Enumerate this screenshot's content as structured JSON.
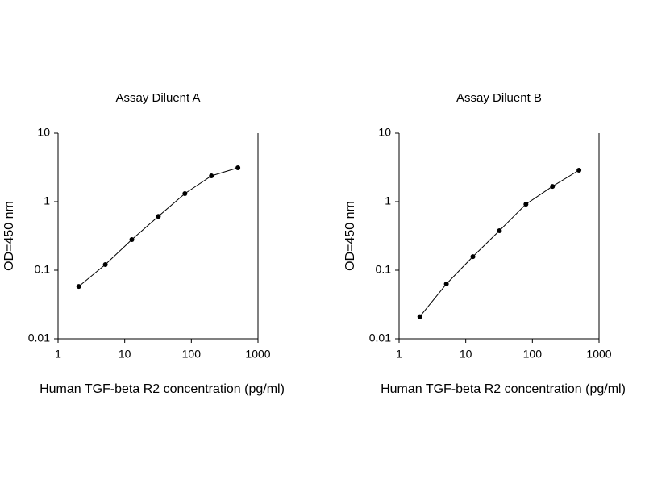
{
  "chart_data": [
    {
      "type": "line",
      "title": "Assay Diluent A",
      "x_label": "Human TGF-beta R2 concentration (pg/ml)",
      "y_label": "OD=450 nm",
      "x": [
        2.048,
        5.12,
        12.8,
        32,
        80,
        200,
        500
      ],
      "values": [
        0.058,
        0.121,
        0.28,
        0.61,
        1.31,
        2.38,
        3.12
      ],
      "color": "#000000",
      "xscale": "log",
      "yscale": "log",
      "xlim": [
        1,
        1000
      ],
      "ylim": [
        0.01,
        10
      ],
      "xticks": [
        1,
        10,
        100,
        1000
      ],
      "yticks": [
        0.01,
        0.1,
        1,
        10
      ]
    },
    {
      "type": "line",
      "title": "Assay Diluent B",
      "x_label": "Human TGF-beta R2 concentration (pg/ml)",
      "y_label": "OD=450 nm",
      "x": [
        2.048,
        5.12,
        12.8,
        32,
        80,
        200,
        500
      ],
      "values": [
        0.021,
        0.063,
        0.158,
        0.377,
        0.92,
        1.67,
        2.88
      ],
      "color": "#000000",
      "xscale": "log",
      "yscale": "log",
      "xlim": [
        1,
        1000
      ],
      "ylim": [
        0.01,
        10
      ],
      "xticks": [
        1,
        10,
        100,
        1000
      ],
      "yticks": [
        0.01,
        0.1,
        1,
        10
      ]
    }
  ]
}
